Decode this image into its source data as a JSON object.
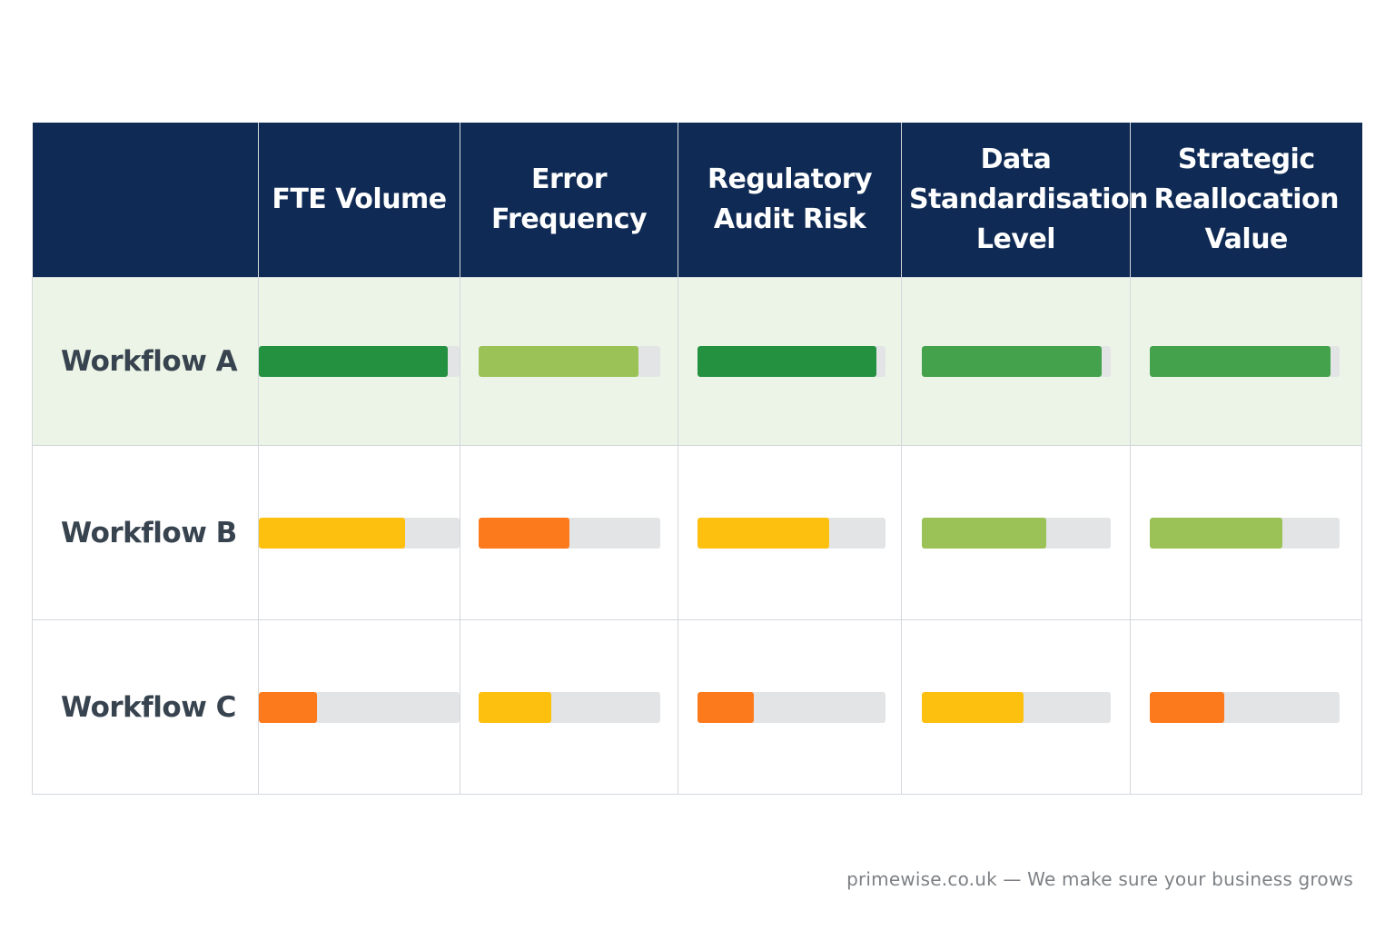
{
  "chart_data": {
    "type": "table",
    "columns": [
      "FTE Volume",
      "Error Frequency",
      "Regulatory Audit Risk",
      "Data Standardisation Level",
      "Strategic Reallocation Value"
    ],
    "rows": [
      {
        "label": "Workflow A",
        "values": [
          0.94,
          0.88,
          0.95,
          0.95,
          0.95
        ],
        "colors": [
          "#23913f",
          "#9bc257",
          "#23913f",
          "#45a24c",
          "#45a24c"
        ]
      },
      {
        "label": "Workflow B",
        "values": [
          0.73,
          0.5,
          0.7,
          0.66,
          0.7
        ],
        "colors": [
          "#fdc00f",
          "#fd7a1c",
          "#fdc00f",
          "#9bc257",
          "#9bc257"
        ]
      },
      {
        "label": "Workflow C",
        "values": [
          0.29,
          0.4,
          0.3,
          0.54,
          0.39
        ],
        "colors": [
          "#fd7a1c",
          "#fdc00f",
          "#fd7a1c",
          "#fdc00f",
          "#fd7a1c"
        ]
      }
    ],
    "header_color": "#0f2a54",
    "highlight_row_color": "#ecf4e7",
    "track_color": "#e3e4e6"
  },
  "footer": {
    "text": "primewise.co.uk — We make sure your business grows"
  }
}
